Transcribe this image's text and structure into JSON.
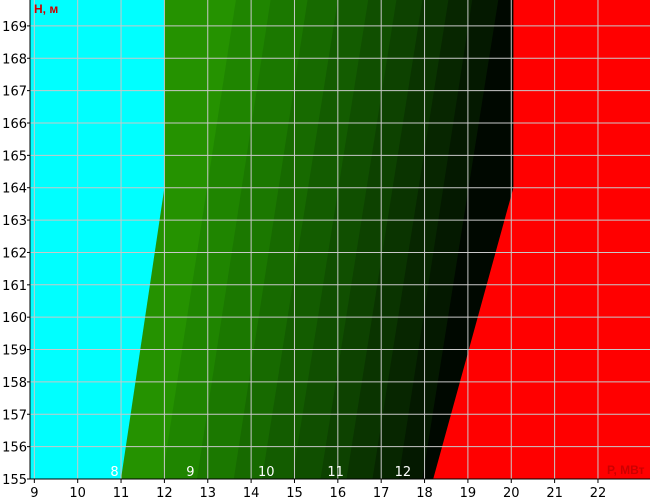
{
  "chart_data": {
    "type": "area",
    "title": "",
    "xlabel": "P, МВт",
    "ylabel": "H, м",
    "xlim": [
      8.9,
      23.2
    ],
    "ylim": [
      155,
      169.8
    ],
    "grid": true,
    "x_ticks": [
      9,
      10,
      11,
      12,
      13,
      14,
      15,
      16,
      17,
      18,
      19,
      20,
      21,
      22
    ],
    "y_ticks": [
      155,
      156,
      157,
      158,
      159,
      160,
      161,
      162,
      163,
      164,
      165,
      166,
      167,
      168,
      169
    ],
    "colors": {
      "left_region": "#00ffff",
      "right_region": "#ff0000",
      "bands": [
        "#259200",
        "#1f8500",
        "#1b7800",
        "#176a00",
        "#135c00",
        "#104f00",
        "#0d4200",
        "#0a3400",
        "#072600",
        "#041900",
        "#000800"
      ],
      "grid": "#c8c8c8",
      "axis_title": "#cc0000"
    },
    "left_boundary": {
      "points": [
        [
          11.0,
          155
        ],
        [
          12.0,
          164
        ],
        [
          12.0,
          169.8
        ]
      ]
    },
    "right_boundary": {
      "points": [
        [
          18.2,
          155
        ],
        [
          20.05,
          164
        ],
        [
          20.05,
          169.8
        ]
      ]
    },
    "band_boundaries": [
      {
        "bottom_x": 11.95,
        "top_x": 13.65
      },
      {
        "bottom_x": 12.75,
        "top_x": 14.45
      },
      {
        "bottom_x": 13.6,
        "top_x": 15.3
      },
      {
        "bottom_x": 14.25,
        "top_x": 16.0
      },
      {
        "bottom_x": 14.95,
        "top_x": 16.7
      },
      {
        "bottom_x": 15.6,
        "top_x": 17.35
      },
      {
        "bottom_x": 16.2,
        "top_x": 17.95
      },
      {
        "bottom_x": 16.8,
        "top_x": 18.55
      },
      {
        "bottom_x": 17.4,
        "top_x": 19.1
      },
      {
        "bottom_x": 17.95,
        "top_x": 19.7
      }
    ],
    "band_labels": [
      {
        "text": "8",
        "x": 10.85
      },
      {
        "text": "9",
        "x": 12.6
      },
      {
        "text": "10",
        "x": 14.35
      },
      {
        "text": "11",
        "x": 15.95
      },
      {
        "text": "12",
        "x": 17.5
      }
    ]
  }
}
